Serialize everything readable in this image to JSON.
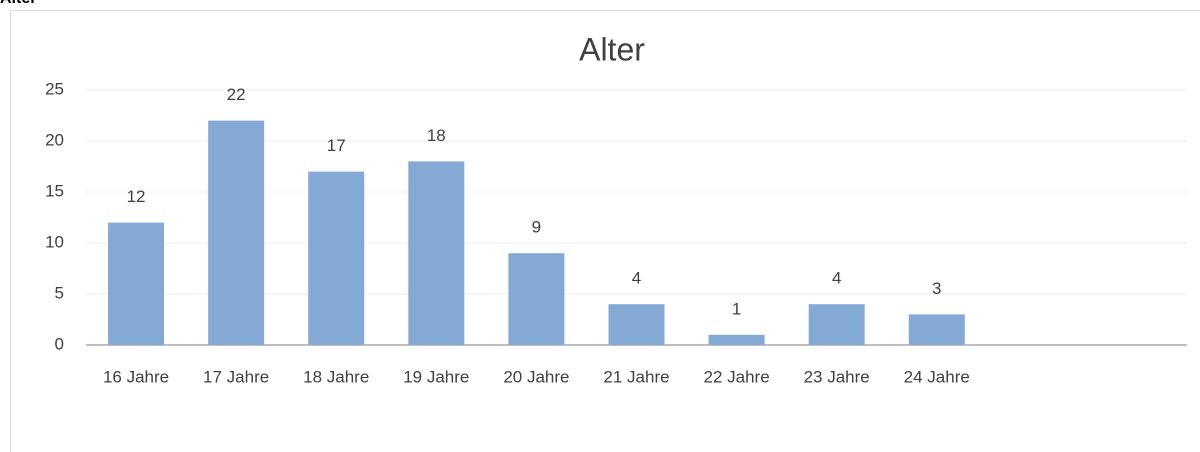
{
  "heading": "Alter",
  "chart_data": {
    "type": "bar",
    "title": "Alter",
    "categories": [
      "16 Jahre",
      "17 Jahre",
      "18 Jahre",
      "19 Jahre",
      "20 Jahre",
      "21 Jahre",
      "22 Jahre",
      "23 Jahre",
      "24 Jahre",
      null,
      null
    ],
    "values": [
      12,
      22,
      17,
      18,
      9,
      4,
      1,
      4,
      3,
      null,
      null
    ],
    "color": "#84a9d4",
    "ylim": [
      0,
      25
    ],
    "yticks": [
      0,
      5,
      10,
      15,
      20,
      25
    ],
    "grid": true
  }
}
